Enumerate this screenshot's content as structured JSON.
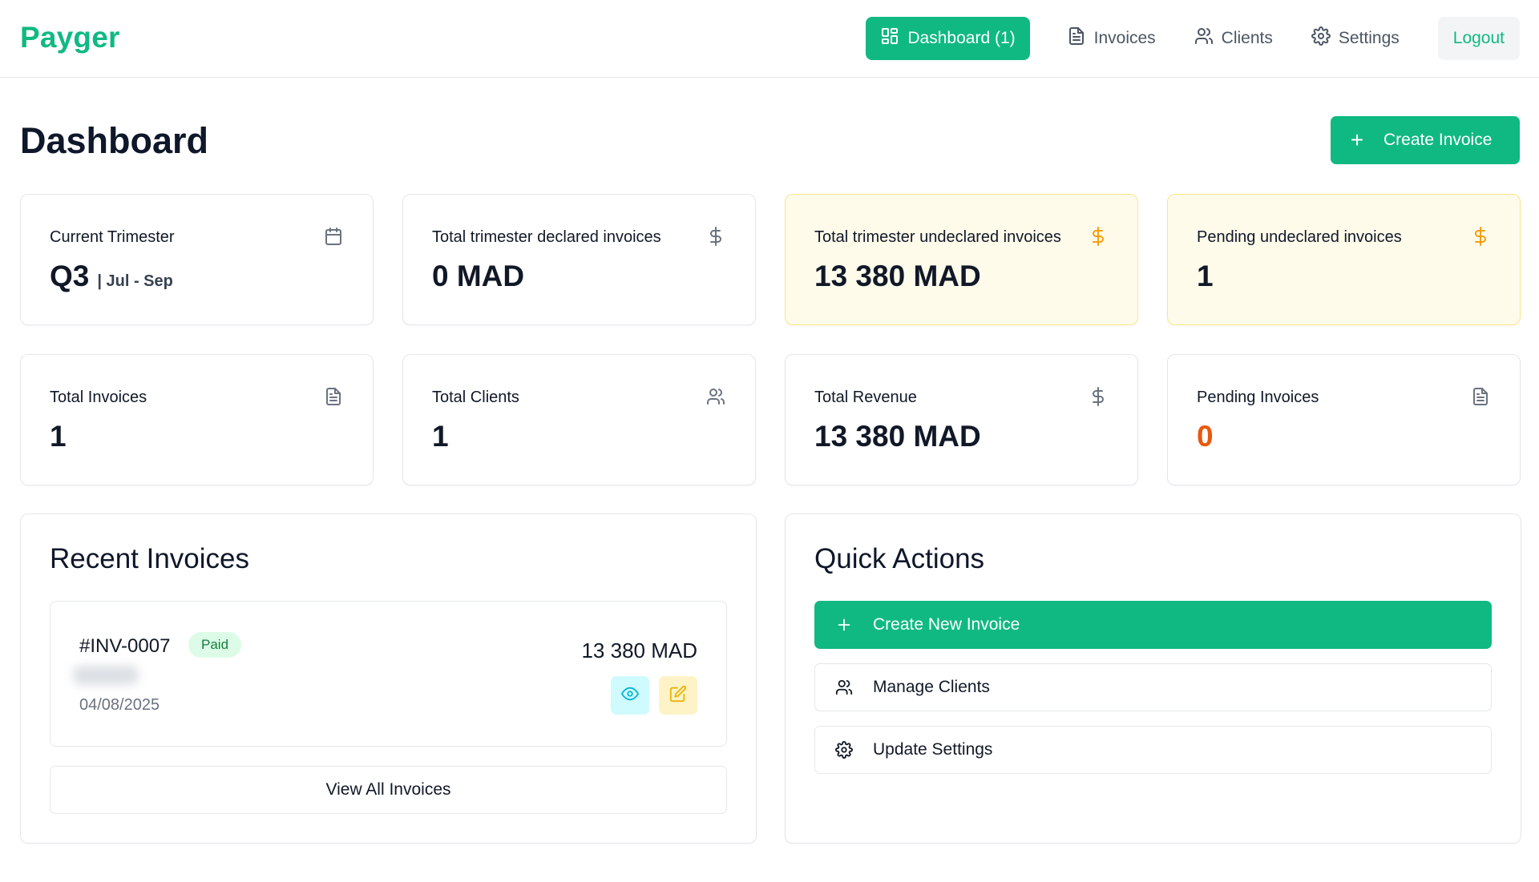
{
  "app": {
    "name": "Payger"
  },
  "nav": {
    "dashboard_label": "Dashboard (1)",
    "invoices_label": "Invoices",
    "clients_label": "Clients",
    "settings_label": "Settings",
    "logout_label": "Logout"
  },
  "page": {
    "title": "Dashboard",
    "create_button": "Create Invoice"
  },
  "stats_row1": [
    {
      "label": "Current Trimester",
      "value": "Q3",
      "sub": "| Jul - Sep",
      "icon": "calendar-icon"
    },
    {
      "label": "Total trimester declared invoices",
      "value": "0 MAD",
      "icon": "dollar-icon"
    },
    {
      "label": "Total trimester undeclared invoices",
      "value": "13 380 MAD",
      "icon": "dollar-icon"
    },
    {
      "label": "Pending undeclared invoices",
      "value": "1",
      "icon": "dollar-icon"
    }
  ],
  "stats_row2": [
    {
      "label": "Total Invoices",
      "value": "1",
      "icon": "file-icon"
    },
    {
      "label": "Total Clients",
      "value": "1",
      "icon": "users-icon"
    },
    {
      "label": "Total Revenue",
      "value": "13 380 MAD",
      "icon": "dollar-icon"
    },
    {
      "label": "Pending Invoices",
      "value": "0",
      "icon": "file-icon"
    }
  ],
  "recent": {
    "title": "Recent Invoices",
    "invoices": [
      {
        "number": "#INV-0007",
        "status": "Paid",
        "date": "04/08/2025",
        "amount": "13 380 MAD"
      }
    ],
    "view_all": "View All Invoices"
  },
  "quick_actions": {
    "title": "Quick Actions",
    "create": "Create New Invoice",
    "clients": "Manage Clients",
    "settings": "Update Settings"
  },
  "colors": {
    "brand": "#10b981",
    "warning_bg": "#fefbeb",
    "warning_border": "#fde68a",
    "warning_icon": "#f59e0b",
    "pending_orange": "#ea580c",
    "paid_badge_bg": "#dcfce7"
  }
}
